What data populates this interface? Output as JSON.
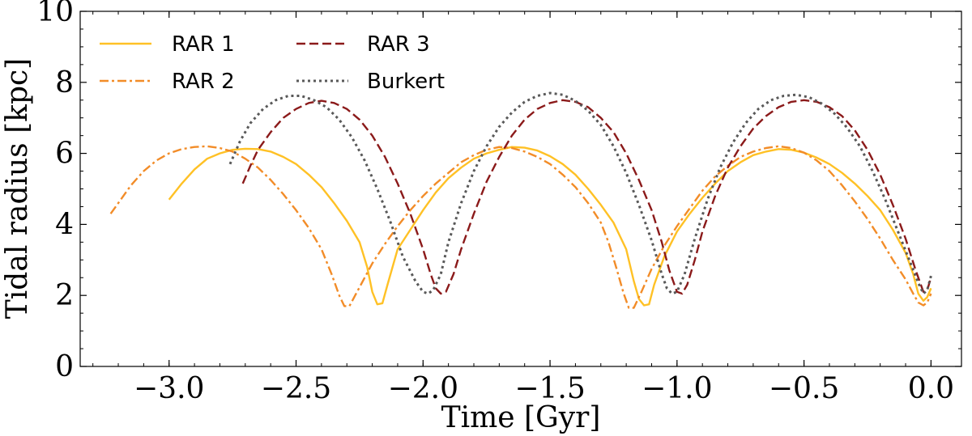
{
  "chart_data": {
    "type": "line",
    "title": "",
    "xlabel": "Time [Gyr]",
    "ylabel": "Tidal radius [kpc]",
    "xlim": [
      -3.35,
      0.12
    ],
    "ylim": [
      0,
      10
    ],
    "xticks": [
      -3.0,
      -2.5,
      -2.0,
      -1.5,
      -1.0,
      -0.5,
      0.0
    ],
    "xtick_labels": [
      "−3.0",
      "−2.5",
      "−2.0",
      "−1.5",
      "−1.0",
      "−0.5",
      "0.0"
    ],
    "yticks": [
      0,
      2,
      4,
      6,
      8,
      10
    ],
    "ytick_labels": [
      "0",
      "2",
      "4",
      "6",
      "8",
      "10"
    ],
    "grid": false,
    "legend_position": "top-left",
    "series": [
      {
        "name": "RAR 1",
        "color": "#ffc125",
        "dash": "solid",
        "points": [
          [
            -3.0,
            4.7
          ],
          [
            -2.95,
            5.15
          ],
          [
            -2.9,
            5.55
          ],
          [
            -2.85,
            5.85
          ],
          [
            -2.8,
            6.0
          ],
          [
            -2.75,
            6.1
          ],
          [
            -2.7,
            6.13
          ],
          [
            -2.65,
            6.12
          ],
          [
            -2.6,
            6.05
          ],
          [
            -2.55,
            5.9
          ],
          [
            -2.5,
            5.7
          ],
          [
            -2.45,
            5.4
          ],
          [
            -2.4,
            5.05
          ],
          [
            -2.35,
            4.6
          ],
          [
            -2.3,
            4.1
          ],
          [
            -2.25,
            3.5
          ],
          [
            -2.22,
            2.8
          ],
          [
            -2.2,
            2.1
          ],
          [
            -2.18,
            1.75
          ],
          [
            -2.16,
            1.78
          ],
          [
            -2.14,
            2.3
          ],
          [
            -2.1,
            3.3
          ],
          [
            -2.05,
            3.85
          ],
          [
            -2.0,
            4.4
          ],
          [
            -1.95,
            4.9
          ],
          [
            -1.9,
            5.3
          ],
          [
            -1.85,
            5.6
          ],
          [
            -1.8,
            5.85
          ],
          [
            -1.75,
            6.0
          ],
          [
            -1.7,
            6.1
          ],
          [
            -1.65,
            6.18
          ],
          [
            -1.6,
            6.16
          ],
          [
            -1.55,
            6.08
          ],
          [
            -1.5,
            5.92
          ],
          [
            -1.45,
            5.7
          ],
          [
            -1.4,
            5.4
          ],
          [
            -1.35,
            5.0
          ],
          [
            -1.3,
            4.55
          ],
          [
            -1.25,
            4.05
          ],
          [
            -1.2,
            3.3
          ],
          [
            -1.17,
            2.4
          ],
          [
            -1.15,
            1.9
          ],
          [
            -1.13,
            1.72
          ],
          [
            -1.11,
            1.75
          ],
          [
            -1.09,
            2.3
          ],
          [
            -1.05,
            3.1
          ],
          [
            -1.0,
            3.8
          ],
          [
            -0.95,
            4.3
          ],
          [
            -0.9,
            4.75
          ],
          [
            -0.85,
            5.15
          ],
          [
            -0.8,
            5.5
          ],
          [
            -0.75,
            5.75
          ],
          [
            -0.7,
            5.95
          ],
          [
            -0.65,
            6.05
          ],
          [
            -0.6,
            6.12
          ],
          [
            -0.55,
            6.1
          ],
          [
            -0.5,
            6.02
          ],
          [
            -0.45,
            5.88
          ],
          [
            -0.4,
            5.7
          ],
          [
            -0.35,
            5.45
          ],
          [
            -0.3,
            5.15
          ],
          [
            -0.25,
            4.8
          ],
          [
            -0.2,
            4.4
          ],
          [
            -0.15,
            3.85
          ],
          [
            -0.1,
            3.2
          ],
          [
            -0.07,
            2.6
          ],
          [
            -0.05,
            2.05
          ],
          [
            -0.03,
            1.85
          ],
          [
            -0.015,
            1.95
          ],
          [
            0.0,
            2.2
          ]
        ]
      },
      {
        "name": "RAR 2",
        "color": "#f28c28",
        "dash": "dashdot",
        "points": [
          [
            -3.23,
            4.3
          ],
          [
            -3.2,
            4.6
          ],
          [
            -3.15,
            5.1
          ],
          [
            -3.1,
            5.5
          ],
          [
            -3.05,
            5.8
          ],
          [
            -3.0,
            6.0
          ],
          [
            -2.95,
            6.12
          ],
          [
            -2.9,
            6.18
          ],
          [
            -2.85,
            6.2
          ],
          [
            -2.8,
            6.15
          ],
          [
            -2.75,
            6.05
          ],
          [
            -2.7,
            5.85
          ],
          [
            -2.65,
            5.6
          ],
          [
            -2.6,
            5.25
          ],
          [
            -2.55,
            4.85
          ],
          [
            -2.5,
            4.4
          ],
          [
            -2.45,
            3.9
          ],
          [
            -2.4,
            3.3
          ],
          [
            -2.36,
            2.6
          ],
          [
            -2.33,
            2.0
          ],
          [
            -2.31,
            1.7
          ],
          [
            -2.29,
            1.7
          ],
          [
            -2.26,
            2.1
          ],
          [
            -2.2,
            2.9
          ],
          [
            -2.15,
            3.45
          ],
          [
            -2.1,
            3.95
          ],
          [
            -2.05,
            4.4
          ],
          [
            -2.0,
            4.8
          ],
          [
            -1.95,
            5.15
          ],
          [
            -1.9,
            5.45
          ],
          [
            -1.85,
            5.75
          ],
          [
            -1.8,
            5.95
          ],
          [
            -1.75,
            6.1
          ],
          [
            -1.7,
            6.18
          ],
          [
            -1.65,
            6.15
          ],
          [
            -1.6,
            6.05
          ],
          [
            -1.55,
            5.9
          ],
          [
            -1.5,
            5.7
          ],
          [
            -1.45,
            5.4
          ],
          [
            -1.4,
            5.05
          ],
          [
            -1.35,
            4.6
          ],
          [
            -1.3,
            4.05
          ],
          [
            -1.27,
            3.5
          ],
          [
            -1.24,
            2.8
          ],
          [
            -1.21,
            2.05
          ],
          [
            -1.19,
            1.65
          ],
          [
            -1.17,
            1.65
          ],
          [
            -1.14,
            2.1
          ],
          [
            -1.1,
            2.75
          ],
          [
            -1.05,
            3.4
          ],
          [
            -1.0,
            3.95
          ],
          [
            -0.95,
            4.45
          ],
          [
            -0.9,
            4.95
          ],
          [
            -0.85,
            5.35
          ],
          [
            -0.8,
            5.65
          ],
          [
            -0.75,
            5.9
          ],
          [
            -0.7,
            6.05
          ],
          [
            -0.65,
            6.15
          ],
          [
            -0.6,
            6.2
          ],
          [
            -0.55,
            6.15
          ],
          [
            -0.5,
            6.02
          ],
          [
            -0.45,
            5.8
          ],
          [
            -0.4,
            5.5
          ],
          [
            -0.35,
            5.1
          ],
          [
            -0.3,
            4.65
          ],
          [
            -0.25,
            4.15
          ],
          [
            -0.2,
            3.6
          ],
          [
            -0.15,
            3.0
          ],
          [
            -0.1,
            2.45
          ],
          [
            -0.07,
            2.05
          ],
          [
            -0.05,
            1.8
          ],
          [
            -0.03,
            1.72
          ],
          [
            -0.015,
            1.8
          ],
          [
            0.0,
            2.05
          ]
        ]
      },
      {
        "name": "RAR 3",
        "color": "#8b1a1a",
        "dash": "dashed",
        "points": [
          [
            -2.71,
            5.15
          ],
          [
            -2.68,
            5.65
          ],
          [
            -2.65,
            6.1
          ],
          [
            -2.6,
            6.6
          ],
          [
            -2.55,
            7.0
          ],
          [
            -2.5,
            7.25
          ],
          [
            -2.45,
            7.42
          ],
          [
            -2.4,
            7.48
          ],
          [
            -2.35,
            7.42
          ],
          [
            -2.3,
            7.25
          ],
          [
            -2.25,
            6.95
          ],
          [
            -2.2,
            6.5
          ],
          [
            -2.15,
            5.9
          ],
          [
            -2.1,
            5.15
          ],
          [
            -2.05,
            4.3
          ],
          [
            -2.0,
            3.3
          ],
          [
            -1.97,
            2.6
          ],
          [
            -1.95,
            2.2
          ],
          [
            -1.93,
            2.05
          ],
          [
            -1.91,
            2.1
          ],
          [
            -1.88,
            2.6
          ],
          [
            -1.85,
            3.3
          ],
          [
            -1.8,
            4.3
          ],
          [
            -1.75,
            5.2
          ],
          [
            -1.7,
            5.9
          ],
          [
            -1.65,
            6.5
          ],
          [
            -1.6,
            6.95
          ],
          [
            -1.55,
            7.25
          ],
          [
            -1.5,
            7.42
          ],
          [
            -1.45,
            7.5
          ],
          [
            -1.4,
            7.45
          ],
          [
            -1.35,
            7.3
          ],
          [
            -1.3,
            7.0
          ],
          [
            -1.25,
            6.6
          ],
          [
            -1.2,
            6.0
          ],
          [
            -1.15,
            5.25
          ],
          [
            -1.1,
            4.4
          ],
          [
            -1.06,
            3.5
          ],
          [
            -1.03,
            2.7
          ],
          [
            -1.0,
            2.1
          ],
          [
            -0.98,
            2.05
          ],
          [
            -0.96,
            2.3
          ],
          [
            -0.93,
            3.0
          ],
          [
            -0.9,
            3.8
          ],
          [
            -0.85,
            4.8
          ],
          [
            -0.8,
            5.6
          ],
          [
            -0.75,
            6.2
          ],
          [
            -0.7,
            6.7
          ],
          [
            -0.65,
            7.05
          ],
          [
            -0.6,
            7.3
          ],
          [
            -0.55,
            7.45
          ],
          [
            -0.5,
            7.5
          ],
          [
            -0.45,
            7.45
          ],
          [
            -0.4,
            7.3
          ],
          [
            -0.35,
            7.05
          ],
          [
            -0.3,
            6.65
          ],
          [
            -0.25,
            6.1
          ],
          [
            -0.2,
            5.4
          ],
          [
            -0.15,
            4.55
          ],
          [
            -0.1,
            3.6
          ],
          [
            -0.06,
            2.7
          ],
          [
            -0.03,
            2.1
          ],
          [
            -0.015,
            2.15
          ],
          [
            0.0,
            2.5
          ]
        ]
      },
      {
        "name": "Burkert",
        "color": "#595959",
        "dash": "dotted",
        "points": [
          [
            -2.76,
            5.7
          ],
          [
            -2.72,
            6.35
          ],
          [
            -2.68,
            6.85
          ],
          [
            -2.63,
            7.25
          ],
          [
            -2.58,
            7.5
          ],
          [
            -2.53,
            7.62
          ],
          [
            -2.48,
            7.62
          ],
          [
            -2.43,
            7.5
          ],
          [
            -2.38,
            7.3
          ],
          [
            -2.33,
            6.95
          ],
          [
            -2.28,
            6.45
          ],
          [
            -2.23,
            5.8
          ],
          [
            -2.18,
            5.0
          ],
          [
            -2.13,
            4.1
          ],
          [
            -2.08,
            3.1
          ],
          [
            -2.03,
            2.4
          ],
          [
            -2.0,
            2.1
          ],
          [
            -1.98,
            2.05
          ],
          [
            -1.96,
            2.15
          ],
          [
            -1.93,
            2.6
          ],
          [
            -1.9,
            3.5
          ],
          [
            -1.85,
            4.6
          ],
          [
            -1.8,
            5.5
          ],
          [
            -1.75,
            6.2
          ],
          [
            -1.7,
            6.75
          ],
          [
            -1.65,
            7.15
          ],
          [
            -1.6,
            7.45
          ],
          [
            -1.55,
            7.62
          ],
          [
            -1.5,
            7.7
          ],
          [
            -1.45,
            7.65
          ],
          [
            -1.4,
            7.48
          ],
          [
            -1.35,
            7.2
          ],
          [
            -1.3,
            6.8
          ],
          [
            -1.25,
            6.2
          ],
          [
            -1.2,
            5.45
          ],
          [
            -1.15,
            4.55
          ],
          [
            -1.1,
            3.55
          ],
          [
            -1.06,
            2.6
          ],
          [
            -1.04,
            2.2
          ],
          [
            -1.02,
            2.05
          ],
          [
            -1.0,
            2.1
          ],
          [
            -0.97,
            2.6
          ],
          [
            -0.93,
            3.6
          ],
          [
            -0.88,
            4.7
          ],
          [
            -0.83,
            5.6
          ],
          [
            -0.78,
            6.3
          ],
          [
            -0.73,
            6.85
          ],
          [
            -0.68,
            7.25
          ],
          [
            -0.63,
            7.5
          ],
          [
            -0.58,
            7.62
          ],
          [
            -0.53,
            7.65
          ],
          [
            -0.48,
            7.58
          ],
          [
            -0.43,
            7.4
          ],
          [
            -0.38,
            7.12
          ],
          [
            -0.33,
            6.72
          ],
          [
            -0.28,
            6.2
          ],
          [
            -0.23,
            5.5
          ],
          [
            -0.18,
            4.7
          ],
          [
            -0.13,
            3.8
          ],
          [
            -0.08,
            2.9
          ],
          [
            -0.05,
            2.35
          ],
          [
            -0.03,
            2.05
          ],
          [
            -0.015,
            2.15
          ],
          [
            0.0,
            2.55
          ]
        ]
      }
    ]
  }
}
